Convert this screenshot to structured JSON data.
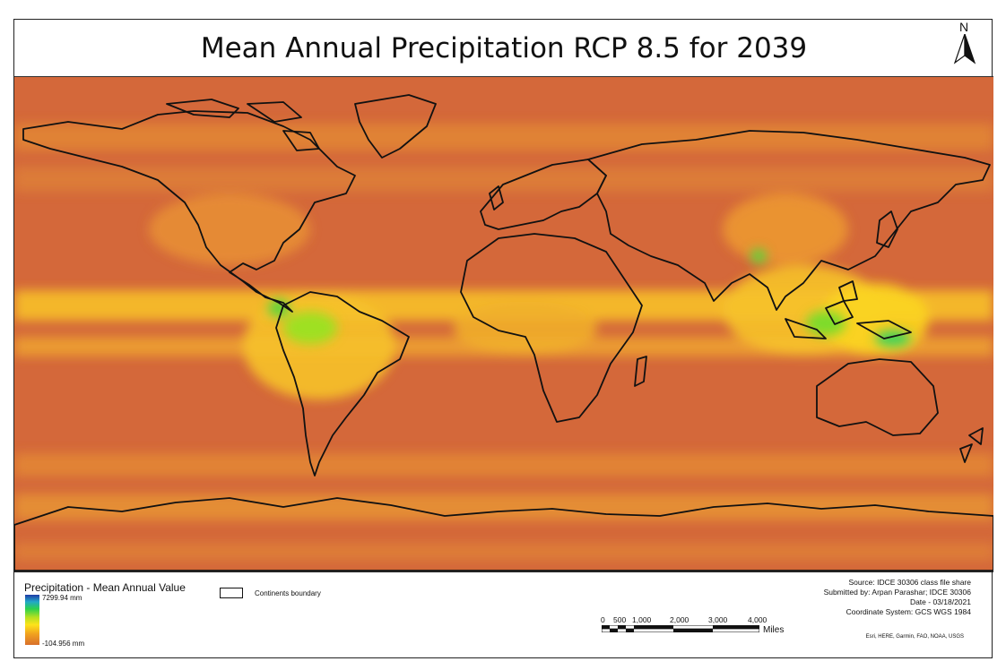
{
  "map": {
    "title": "Mean Annual Precipitation RCP 8.5 for 2039",
    "north_arrow": {
      "label": "N",
      "icon": "north-arrow-icon"
    }
  },
  "legend": {
    "title": "Precipitation - Mean Annual Value",
    "ramp_max": "7299.94 mm",
    "ramp_min": "-104.956 mm",
    "ramp_colors": [
      "#1f3aa6",
      "#22a8c8",
      "#2bd14d",
      "#b6e020",
      "#fde31a",
      "#f1a21e",
      "#d8702c"
    ],
    "boundary_label": "Continents boundary"
  },
  "scale_bar": {
    "labels": [
      "0",
      "500",
      "1,000",
      "2,000",
      "3,000",
      "4,000"
    ],
    "unit": "Miles"
  },
  "meta": {
    "source": "Source: IDCE 30306 class file share",
    "submitted": "Submitted by: Arpan Parashar; IDCE 30306",
    "date": "Date - 03/18/2021",
    "crs": "Coordinate System: GCS WGS 1984",
    "credits": "Esri, HERE, Garmin, FAO, NOAA, USGS"
  },
  "colors": {
    "dry": "#d4683a",
    "moderate": "#f0a030",
    "wet": "#fde31a",
    "very_wet": "#2bd14d",
    "coastline": "#111111"
  }
}
